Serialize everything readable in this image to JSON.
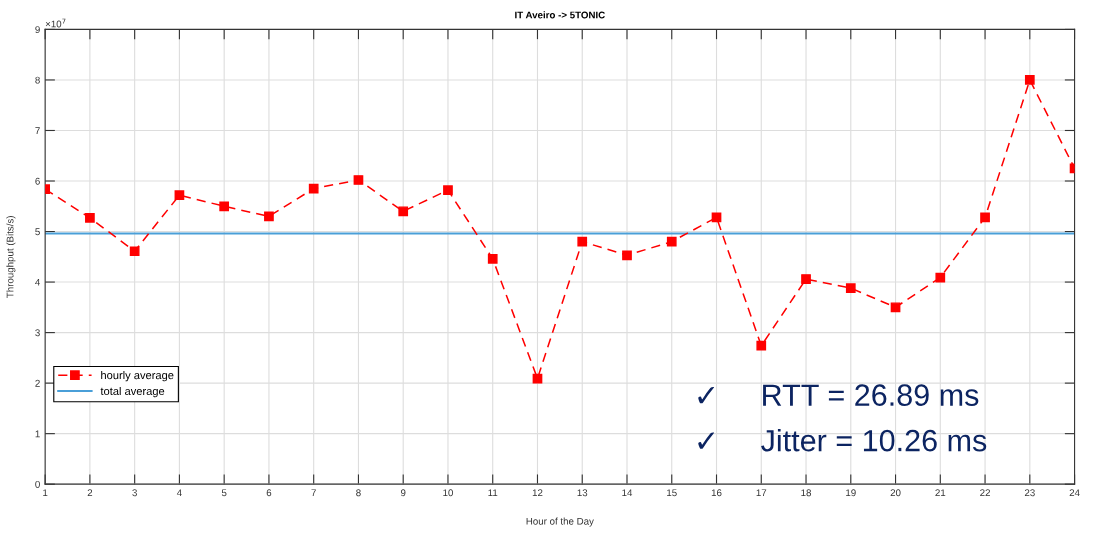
{
  "chart_data": {
    "type": "line",
    "title": "IT Aveiro -> 5TONIC",
    "xlabel": "Hour of the Day",
    "ylabel": "Throughput (Bits/s)",
    "x": [
      1,
      2,
      3,
      4,
      5,
      6,
      7,
      8,
      9,
      10,
      11,
      12,
      13,
      14,
      15,
      16,
      17,
      18,
      19,
      20,
      21,
      22,
      23,
      24
    ],
    "series": [
      {
        "name": "hourly average",
        "color": "#ff0000",
        "marker": "square",
        "line_style": "dashed",
        "values": [
          5.84,
          5.27,
          4.61,
          5.72,
          5.5,
          5.3,
          5.85,
          6.02,
          5.4,
          5.82,
          4.46,
          2.09,
          4.8,
          4.53,
          4.8,
          5.28,
          2.74,
          4.06,
          3.88,
          3.5,
          4.09,
          5.28,
          8.0,
          6.25
        ]
      }
    ],
    "ref_lines": [
      {
        "axis": "y",
        "value": 4.96,
        "label": "total average",
        "color": "#4a9fd8",
        "line_style": "solid"
      }
    ],
    "xlim": [
      1,
      24
    ],
    "xticks": [
      1,
      2,
      3,
      4,
      5,
      6,
      7,
      8,
      9,
      10,
      11,
      12,
      13,
      14,
      15,
      16,
      17,
      18,
      19,
      20,
      21,
      22,
      23,
      24
    ],
    "ylim": [
      0,
      9
    ],
    "yticks": [
      0,
      1,
      2,
      3,
      4,
      5,
      6,
      7,
      8,
      9
    ],
    "grid": true,
    "legend": "left",
    "annotations": [
      "×10$^{7}$",
      "✓",
      "RTT = 26.89 ms",
      "✓",
      "Jitter = 10.26 ms"
    ]
  }
}
